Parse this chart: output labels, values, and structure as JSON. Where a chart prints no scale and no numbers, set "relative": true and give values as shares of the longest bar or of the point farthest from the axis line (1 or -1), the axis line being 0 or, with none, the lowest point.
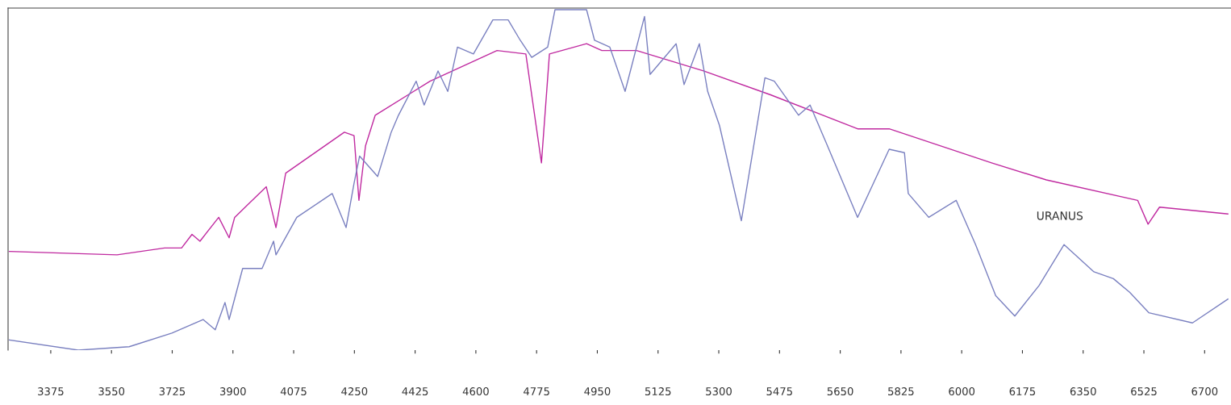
{
  "chart_data": {
    "type": "line",
    "relative": true,
    "xlim": [
      3252,
      6776
    ],
    "xticks": [
      3375,
      3550,
      3725,
      3900,
      4075,
      4250,
      4425,
      4600,
      4775,
      4950,
      5125,
      5300,
      5475,
      5650,
      5825,
      6000,
      6175,
      6350,
      6525,
      6700
    ],
    "grid": false,
    "legend": false,
    "marker": "none",
    "line_style": "solid",
    "series": [
      {
        "color": "#c02aa0",
        "x": [
          3256,
          3566,
          3703,
          3752,
          3782,
          3805,
          3859,
          3889,
          3905,
          3996,
          4024,
          4052,
          4221,
          4249,
          4263,
          4282,
          4310,
          4468,
          4661,
          4744,
          4789,
          4812,
          4919,
          4963,
          4996,
          5063,
          5256,
          5449,
          5700,
          5791,
          6086,
          6244,
          6507,
          6537,
          6570,
          6767
        ],
        "values": [
          0.29,
          0.28,
          0.3,
          0.3,
          0.34,
          0.32,
          0.39,
          0.33,
          0.39,
          0.48,
          0.36,
          0.52,
          0.64,
          0.63,
          0.44,
          0.6,
          0.69,
          0.79,
          0.88,
          0.87,
          0.55,
          0.87,
          0.9,
          0.88,
          0.88,
          0.88,
          0.82,
          0.75,
          0.65,
          0.65,
          0.55,
          0.5,
          0.44,
          0.37,
          0.42,
          0.4
        ]
      },
      {
        "name": "URANUS",
        "color": "#7a80c0",
        "x": [
          3256,
          3454,
          3601,
          3724,
          3814,
          3849,
          3877,
          3889,
          3928,
          3984,
          4017,
          4024,
          4084,
          4186,
          4226,
          4249,
          4265,
          4317,
          4356,
          4377,
          4428,
          4451,
          4491,
          4519,
          4547,
          4593,
          4649,
          4693,
          4728,
          4761,
          4807,
          4828,
          4919,
          4942,
          4986,
          5030,
          5086,
          5102,
          5177,
          5200,
          5244,
          5268,
          5302,
          5365,
          5433,
          5460,
          5530,
          5563,
          5609,
          5700,
          5791,
          5835,
          5846,
          5905,
          5984,
          6040,
          6098,
          6153,
          6223,
          6295,
          6381,
          6437,
          6484,
          6539,
          6665,
          6767
        ],
        "values": [
          0.03,
          0,
          0.01,
          0.05,
          0.09,
          0.06,
          0.14,
          0.09,
          0.24,
          0.24,
          0.32,
          0.28,
          0.39,
          0.46,
          0.36,
          0.49,
          0.57,
          0.51,
          0.64,
          0.69,
          0.79,
          0.72,
          0.82,
          0.76,
          0.89,
          0.87,
          0.97,
          0.97,
          0.91,
          0.86,
          0.89,
          1.0,
          1.0,
          0.91,
          0.89,
          0.76,
          0.98,
          0.81,
          0.9,
          0.78,
          0.9,
          0.76,
          0.66,
          0.38,
          0.8,
          0.79,
          0.69,
          0.72,
          0.61,
          0.39,
          0.59,
          0.58,
          0.46,
          0.39,
          0.44,
          0.31,
          0.16,
          0.1,
          0.19,
          0.31,
          0.23,
          0.21,
          0.17,
          0.11,
          0.08,
          0.15
        ]
      }
    ]
  }
}
